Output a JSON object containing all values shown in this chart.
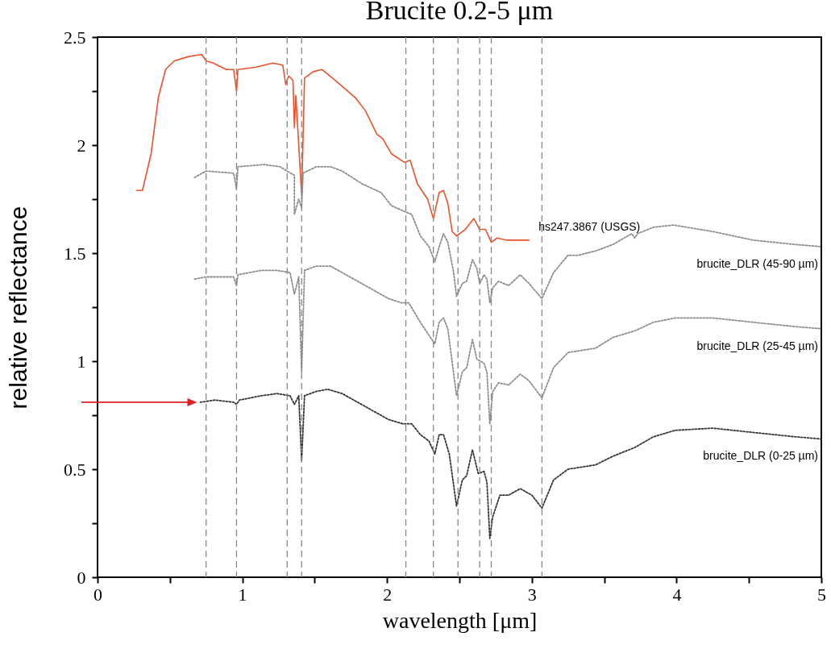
{
  "chart_data": {
    "type": "line",
    "title": "Brucite 0.2-5 μm",
    "xlabel": "wavelength [μm]",
    "ylabel": "relative reflectance",
    "xlim": [
      0,
      5
    ],
    "ylim": [
      0,
      2.5
    ],
    "xticks": [
      0,
      {
        "value": 0.5,
        "label": null
      },
      1,
      {
        "value": 1.5,
        "label": null
      },
      2,
      {
        "value": 2.5,
        "label": null
      },
      3,
      {
        "value": 3.5,
        "label": null
      },
      4,
      {
        "value": 4.5,
        "label": null
      },
      5
    ],
    "yticks": [
      0,
      {
        "value": 0.25,
        "label": null
      },
      0.5,
      {
        "value": 0.75,
        "label": null
      },
      1,
      {
        "value": 1.25,
        "label": null
      },
      1.5,
      {
        "value": 1.75,
        "label": null
      },
      2,
      {
        "value": 2.25,
        "label": null
      },
      2.5
    ],
    "grid": false,
    "marker": "none",
    "line_style": "dotted",
    "ref_lines": [
      {
        "axis": "x",
        "value": 0.75,
        "color": "#888888",
        "line_style": "dashed"
      },
      {
        "axis": "x",
        "value": 0.96,
        "color": "#888888",
        "line_style": "dashed"
      },
      {
        "axis": "x",
        "value": 1.31,
        "color": "#888888",
        "line_style": "dashed"
      },
      {
        "axis": "x",
        "value": 1.41,
        "color": "#888888",
        "line_style": "dashed"
      },
      {
        "axis": "x",
        "value": 2.13,
        "color": "#888888",
        "line_style": "dashed"
      },
      {
        "axis": "x",
        "value": 2.32,
        "color": "#888888",
        "line_style": "dashed"
      },
      {
        "axis": "x",
        "value": 2.49,
        "color": "#888888",
        "line_style": "dashed"
      },
      {
        "axis": "x",
        "value": 2.64,
        "color": "#888888",
        "line_style": "dashed"
      },
      {
        "axis": "x",
        "value": 2.72,
        "color": "#888888",
        "line_style": "dashed"
      },
      {
        "axis": "x",
        "value": 3.07,
        "color": "#888888",
        "line_style": "dashed"
      }
    ],
    "series": [
      {
        "name": "hs247.3867 (USGS)",
        "color": "#e9532b",
        "line_style": "solid",
        "x": [
          0.27,
          0.31,
          0.37,
          0.42,
          0.47,
          0.53,
          0.63,
          0.72,
          0.75,
          0.8,
          0.89,
          0.94,
          0.96,
          0.97,
          1.09,
          1.21,
          1.28,
          1.3,
          1.32,
          1.35,
          1.36,
          1.37,
          1.41,
          1.43,
          1.49,
          1.55,
          1.66,
          1.78,
          1.85,
          1.93,
          1.97,
          2.03,
          2.12,
          2.16,
          2.21,
          2.28,
          2.32,
          2.36,
          2.39,
          2.42,
          2.45,
          2.48,
          2.54,
          2.6,
          2.64,
          2.68,
          2.72,
          2.76,
          2.83,
          2.92,
          2.98
        ],
        "values": [
          1.79,
          1.79,
          1.96,
          2.22,
          2.35,
          2.39,
          2.41,
          2.42,
          2.39,
          2.38,
          2.35,
          2.35,
          2.25,
          2.35,
          2.36,
          2.38,
          2.37,
          2.28,
          2.32,
          2.3,
          2.08,
          2.23,
          1.77,
          2.31,
          2.34,
          2.35,
          2.29,
          2.22,
          2.16,
          2.05,
          2.03,
          1.96,
          1.92,
          1.93,
          1.82,
          1.75,
          1.66,
          1.78,
          1.79,
          1.73,
          1.6,
          1.58,
          1.61,
          1.66,
          1.61,
          1.61,
          1.55,
          1.57,
          1.56,
          1.56,
          1.56
        ]
      },
      {
        "name": "brucite_DLR (45-90 µm)",
        "color": "#8c8c8c",
        "x": [
          0.67,
          0.75,
          0.94,
          0.96,
          0.97,
          1.15,
          1.26,
          1.31,
          1.36,
          1.36,
          1.39,
          1.41,
          1.42,
          1.51,
          1.61,
          1.69,
          1.83,
          1.96,
          2.03,
          2.13,
          2.17,
          2.23,
          2.29,
          2.33,
          2.36,
          2.39,
          2.42,
          2.46,
          2.48,
          2.52,
          2.55,
          2.59,
          2.62,
          2.64,
          2.67,
          2.69,
          2.71,
          2.73,
          2.77,
          2.84,
          2.92,
          2.98,
          3.07,
          3.15,
          3.25,
          3.32,
          3.44,
          3.56,
          3.69,
          3.71,
          3.73,
          3.84,
          3.98,
          4.25,
          4.53,
          4.82,
          5.0
        ],
        "values": [
          1.85,
          1.88,
          1.87,
          1.8,
          1.9,
          1.91,
          1.9,
          1.88,
          1.86,
          1.68,
          1.75,
          1.71,
          1.87,
          1.9,
          1.9,
          1.88,
          1.82,
          1.78,
          1.72,
          1.69,
          1.68,
          1.58,
          1.53,
          1.46,
          1.53,
          1.59,
          1.55,
          1.41,
          1.3,
          1.36,
          1.37,
          1.47,
          1.43,
          1.36,
          1.4,
          1.38,
          1.27,
          1.34,
          1.37,
          1.35,
          1.4,
          1.36,
          1.29,
          1.41,
          1.49,
          1.49,
          1.51,
          1.54,
          1.59,
          1.57,
          1.59,
          1.62,
          1.63,
          1.6,
          1.56,
          1.54,
          1.53
        ]
      },
      {
        "name": "brucite_DLR (25-45 µm)",
        "color": "#8c8c8c",
        "x": [
          0.67,
          0.75,
          0.94,
          0.96,
          0.97,
          1.13,
          1.24,
          1.33,
          1.36,
          1.39,
          1.41,
          1.43,
          1.51,
          1.61,
          1.69,
          1.85,
          2.01,
          2.1,
          2.15,
          2.23,
          2.33,
          2.36,
          2.39,
          2.42,
          2.48,
          2.52,
          2.55,
          2.59,
          2.62,
          2.67,
          2.69,
          2.71,
          2.73,
          2.77,
          2.84,
          2.92,
          2.98,
          3.07,
          3.15,
          3.25,
          3.44,
          3.56,
          3.71,
          3.84,
          3.99,
          4.25,
          4.53,
          4.82,
          5.0
        ],
        "values": [
          1.38,
          1.39,
          1.39,
          1.35,
          1.4,
          1.42,
          1.42,
          1.41,
          1.31,
          1.39,
          0.95,
          1.42,
          1.44,
          1.44,
          1.41,
          1.35,
          1.29,
          1.27,
          1.27,
          1.18,
          1.08,
          1.18,
          1.2,
          1.15,
          0.84,
          0.95,
          0.97,
          1.1,
          1.01,
          0.99,
          0.95,
          0.71,
          0.86,
          0.9,
          0.89,
          0.94,
          0.91,
          0.83,
          0.97,
          1.04,
          1.06,
          1.11,
          1.14,
          1.18,
          1.2,
          1.2,
          1.18,
          1.16,
          1.15
        ]
      },
      {
        "name": "brucite_DLR (0-25 µm)",
        "color": "#333333",
        "x": [
          0.71,
          0.81,
          0.94,
          0.96,
          0.98,
          1.13,
          1.24,
          1.33,
          1.36,
          1.39,
          1.41,
          1.43,
          1.51,
          1.59,
          1.69,
          1.85,
          2.01,
          2.11,
          2.17,
          2.23,
          2.29,
          2.33,
          2.36,
          2.39,
          2.43,
          2.48,
          2.52,
          2.55,
          2.59,
          2.63,
          2.67,
          2.69,
          2.71,
          2.73,
          2.78,
          2.84,
          2.92,
          3.0,
          3.07,
          3.15,
          3.25,
          3.44,
          3.56,
          3.71,
          3.84,
          3.99,
          4.25,
          4.53,
          4.82,
          5.0
        ],
        "values": [
          0.81,
          0.82,
          0.81,
          0.8,
          0.82,
          0.84,
          0.85,
          0.84,
          0.8,
          0.84,
          0.54,
          0.84,
          0.86,
          0.87,
          0.85,
          0.79,
          0.73,
          0.71,
          0.71,
          0.66,
          0.63,
          0.57,
          0.66,
          0.66,
          0.57,
          0.33,
          0.45,
          0.47,
          0.59,
          0.48,
          0.49,
          0.44,
          0.18,
          0.28,
          0.38,
          0.38,
          0.41,
          0.38,
          0.32,
          0.45,
          0.5,
          0.52,
          0.56,
          0.6,
          0.65,
          0.68,
          0.69,
          0.67,
          0.65,
          0.64
        ]
      }
    ]
  }
}
